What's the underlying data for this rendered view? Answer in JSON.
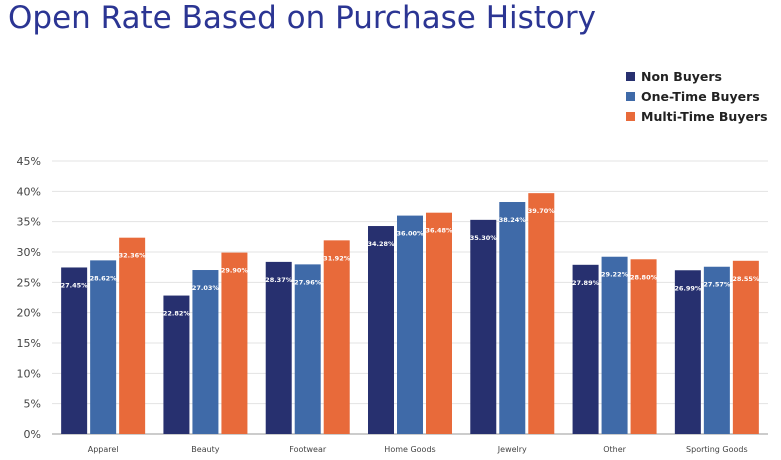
{
  "chart_data": {
    "type": "bar",
    "title": "Open Rate Based on Purchase History",
    "xlabel": "",
    "ylabel": "",
    "ylim": [
      0,
      45
    ],
    "yticks": [
      "0%",
      "5%",
      "10%",
      "15%",
      "20%",
      "25%",
      "30%",
      "35%",
      "40%",
      "45%"
    ],
    "grid": true,
    "legend_position": "top-right",
    "categories": [
      "Apparel",
      "Beauty",
      "Footwear",
      "Home Goods",
      "Jewelry",
      "Other",
      "Sporting Goods"
    ],
    "series": [
      {
        "name": "Non Buyers",
        "color": "#27306f",
        "values": [
          27.45,
          22.82,
          28.37,
          34.28,
          35.3,
          27.89,
          26.99
        ],
        "labels": [
          "27.45%",
          "22.82%",
          "28.37%",
          "34.28%",
          "35.30%",
          "27.89%",
          "26.99%"
        ]
      },
      {
        "name": "One-Time Buyers",
        "color": "#3f6aa8",
        "values": [
          28.62,
          27.03,
          27.96,
          36.0,
          38.24,
          29.22,
          27.57
        ],
        "labels": [
          "28.62%",
          "27.03%",
          "27.96%",
          "36.00%",
          "38.24%",
          "29.22%",
          "27.57%"
        ]
      },
      {
        "name": "Multi-Time Buyers",
        "color": "#e86a3a",
        "values": [
          32.36,
          29.9,
          31.92,
          36.48,
          39.7,
          28.8,
          28.55
        ],
        "labels": [
          "32.36%",
          "29.90%",
          "31.92%",
          "36.48%",
          "39.70%",
          "28.80%",
          "28.55%"
        ]
      }
    ]
  }
}
